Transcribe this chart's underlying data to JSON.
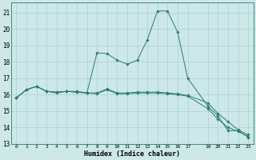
{
  "xlabel": "Humidex (Indice chaleur)",
  "xlim": [
    -0.5,
    23.5
  ],
  "ylim": [
    13,
    21.6
  ],
  "yticks": [
    13,
    14,
    15,
    16,
    17,
    18,
    19,
    20,
    21
  ],
  "xticks": [
    0,
    1,
    2,
    3,
    4,
    5,
    6,
    7,
    8,
    9,
    10,
    11,
    12,
    13,
    14,
    15,
    16,
    17,
    19,
    20,
    21,
    22,
    23
  ],
  "xtick_labels": [
    "0",
    "1",
    "2",
    "3",
    "4",
    "5",
    "6",
    "7",
    "8",
    "9",
    "10",
    "11",
    "12",
    "13",
    "14",
    "15",
    "16",
    "17",
    "19",
    "20",
    "21",
    "22",
    "23"
  ],
  "bg_color": "#cce8e8",
  "line_color": "#2e7d6e",
  "grid_color": "#aad0d0",
  "lines": [
    {
      "x": [
        0,
        1,
        2,
        3,
        4,
        5,
        6,
        7,
        8,
        9,
        10,
        11,
        12,
        13,
        14,
        15,
        16,
        17,
        19,
        20,
        21,
        22,
        23
      ],
      "y": [
        15.8,
        16.3,
        16.5,
        16.2,
        16.1,
        16.2,
        16.2,
        16.1,
        18.55,
        18.5,
        18.1,
        17.85,
        18.1,
        19.35,
        21.1,
        21.1,
        19.8,
        17.0,
        15.3,
        14.7,
        13.8,
        13.8,
        13.4
      ]
    },
    {
      "x": [
        0,
        1,
        2,
        3,
        4,
        5,
        6,
        7,
        8,
        9,
        10,
        11,
        12,
        13,
        14,
        15,
        16,
        17,
        19,
        20,
        21,
        22,
        23
      ],
      "y": [
        15.8,
        16.3,
        16.5,
        16.2,
        16.15,
        16.2,
        16.15,
        16.1,
        16.1,
        16.35,
        16.1,
        16.1,
        16.15,
        16.15,
        16.15,
        16.1,
        16.05,
        15.95,
        15.5,
        14.85,
        14.35,
        13.85,
        13.55
      ]
    },
    {
      "x": [
        0,
        1,
        2,
        3,
        4,
        5,
        6,
        7,
        8,
        9,
        10,
        11,
        12,
        13,
        14,
        15,
        16,
        17,
        19,
        20,
        21,
        22,
        23
      ],
      "y": [
        15.8,
        16.3,
        16.5,
        16.2,
        16.15,
        16.2,
        16.15,
        16.1,
        16.05,
        16.3,
        16.05,
        16.05,
        16.1,
        16.1,
        16.1,
        16.05,
        16.0,
        15.9,
        15.15,
        14.5,
        14.0,
        13.75,
        13.45
      ]
    }
  ]
}
